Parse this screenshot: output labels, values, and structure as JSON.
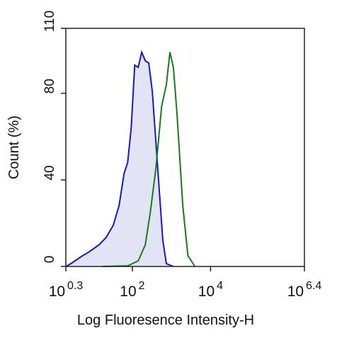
{
  "chart_data": {
    "type": "line",
    "x_label": "Log Fluoresence Intensity-H",
    "y_label": "Count  (%)",
    "log_x": true,
    "xlim": [
      1.9953,
      2511886
    ],
    "xticks": [
      {
        "value": 1.9953,
        "label": "10",
        "exponent": "0.3"
      },
      {
        "value": 100,
        "label": "10",
        "exponent": "2"
      },
      {
        "value": 10000,
        "label": "10",
        "exponent": "4"
      },
      {
        "value": 2511886,
        "label": "10",
        "exponent": "6.4"
      }
    ],
    "ylim": [
      0,
      110
    ],
    "yticks": [
      0,
      40,
      80,
      110
    ],
    "series": [
      {
        "color": "#1a1ab8",
        "fill": "#dcdcf4",
        "x": [
          2.0,
          2.69,
          5.01,
          7.59,
          14.1,
          21.4,
          32.4,
          45.7,
          61.7,
          75.9,
          93.3,
          115,
          141,
          174,
          214,
          263,
          324,
          398,
          490,
          603,
          741,
          1122
        ],
        "values": [
          0,
          1.3,
          4.6,
          6.6,
          10,
          13.4,
          19,
          28,
          43,
          48,
          64,
          93,
          92,
          99,
          95,
          94,
          81,
          58,
          35,
          12,
          1.3,
          0
        ]
      },
      {
        "color": "#1a7a1a",
        "x": [
          17.4,
          75.9,
          141,
          214,
          288,
          398,
          562,
          741,
          912,
          1122,
          1380,
          1950,
          2630,
          3981
        ],
        "values": [
          0,
          0.3,
          2.6,
          10,
          25,
          45,
          74,
          84,
          99,
          92,
          71,
          28,
          5,
          0
        ]
      }
    ]
  }
}
